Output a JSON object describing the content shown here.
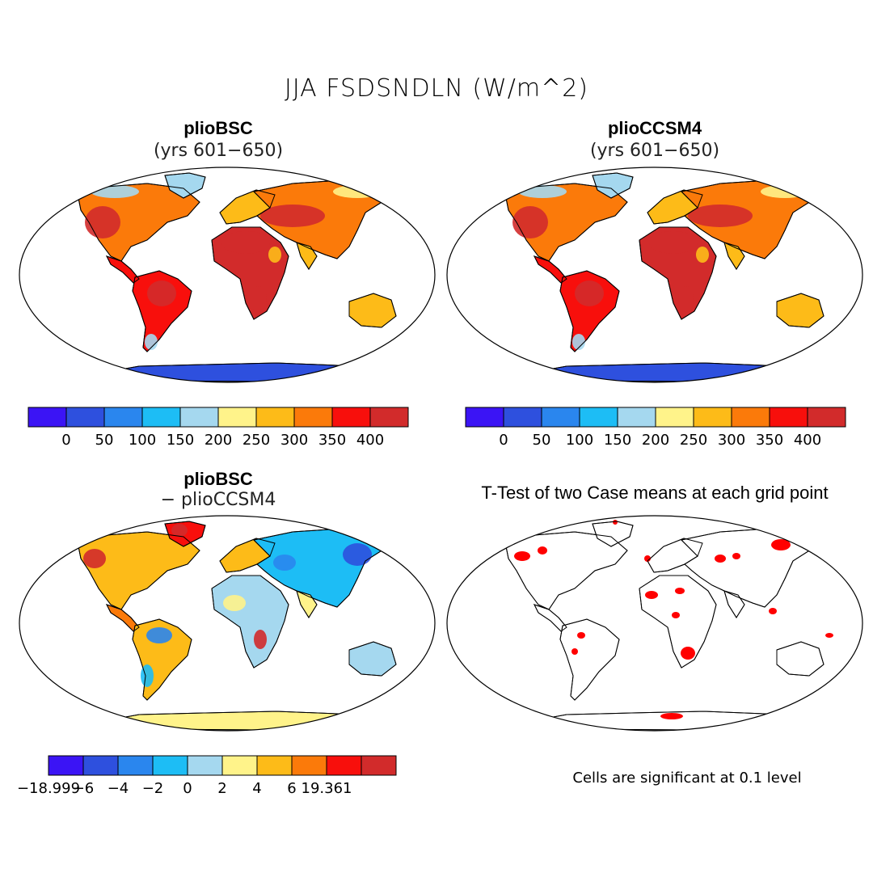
{
  "figure": {
    "main_title": "JJA FSDSNDLN (W/m^2)",
    "panels": [
      {
        "title": "plioBSC",
        "subtitle": "(yrs 601−650)"
      },
      {
        "title": "plioCCSM4",
        "subtitle": "(yrs 601−650)"
      },
      {
        "title": "plioBSC",
        "subtitle": "− plioCCSM4"
      },
      {
        "title": "T-Test of two Case means at each grid point",
        "subtitle": ""
      }
    ],
    "significance_note": "Cells are significant at 0.1 level"
  },
  "colorbars": {
    "absolute": {
      "colors": [
        "#3b14f5",
        "#2e50de",
        "#2a86ee",
        "#1dbdf5",
        "#a5d8ef",
        "#fff38a",
        "#fdbb18",
        "#fb7a0a",
        "#f80f0c",
        "#d22b2b"
      ],
      "labels": [
        "0",
        "50",
        "100",
        "150",
        "200",
        "250",
        "300",
        "350",
        "400"
      ]
    },
    "difference": {
      "colors": [
        "#3b14f5",
        "#2e50de",
        "#2a86ee",
        "#1dbdf5",
        "#a5d8ef",
        "#fff38a",
        "#fdbb18",
        "#fb7a0a",
        "#f80f0c",
        "#d22b2b"
      ],
      "labels": [
        "−18.999",
        "−6",
        "−4",
        "−2",
        "0",
        "2",
        "4",
        "6",
        "19.361"
      ]
    }
  },
  "chart_data": [
    {
      "type": "heatmap",
      "title": "plioBSC",
      "subtitle": "(yrs 601−650)",
      "levels": [
        0,
        50,
        100,
        150,
        200,
        250,
        300,
        350,
        400
      ],
      "units": "W/m^2"
    },
    {
      "type": "heatmap",
      "title": "plioCCSM4",
      "subtitle": "(yrs 601−650)",
      "levels": [
        0,
        50,
        100,
        150,
        200,
        250,
        300,
        350,
        400
      ],
      "units": "W/m^2"
    },
    {
      "type": "heatmap",
      "title": "plioBSC",
      "subtitle": "− plioCCSM4",
      "levels": [
        -18.999,
        -6,
        -4,
        -2,
        0,
        2,
        4,
        6,
        19.361
      ]
    },
    {
      "type": "heatmap",
      "title": "T-Test of two Case means at each grid point",
      "note": "Cells are significant at 0.1 level"
    }
  ]
}
